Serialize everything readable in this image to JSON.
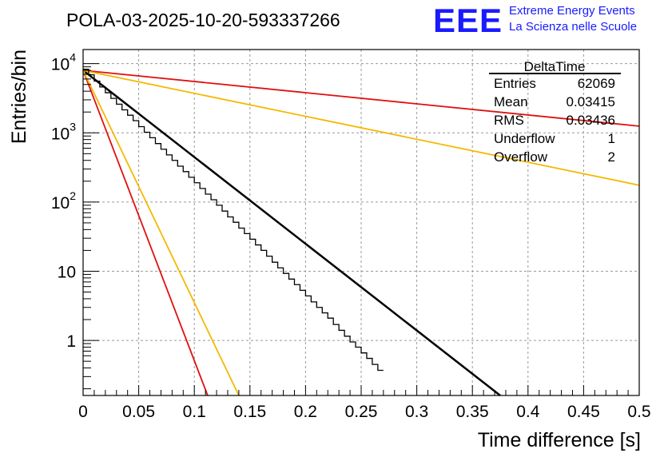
{
  "chart_data": {
    "type": "histogram",
    "title": "POLA-03-2025-10-20-593337266",
    "logo": {
      "text": "EEE",
      "line1": "Extreme Energy Events",
      "line2": "La Scienza nelle Scuole",
      "color": "#1a1aff"
    },
    "xlabel": "Time difference [s]",
    "ylabel": "Entries/bin",
    "xlim": [
      0,
      0.5
    ],
    "ylim": [
      0.16,
      16000
    ],
    "yscale": "log",
    "grid": true,
    "x_ticks": [
      {
        "value": 0,
        "label": "0"
      },
      {
        "value": 0.05,
        "label": "0.05"
      },
      {
        "value": 0.1,
        "label": "0.1"
      },
      {
        "value": 0.15,
        "label": "0.15"
      },
      {
        "value": 0.2,
        "label": "0.2"
      },
      {
        "value": 0.25,
        "label": "0.25"
      },
      {
        "value": 0.3,
        "label": "0.3"
      },
      {
        "value": 0.35,
        "label": "0.35"
      },
      {
        "value": 0.4,
        "label": "0.4"
      },
      {
        "value": 0.45,
        "label": "0.45"
      },
      {
        "value": 0.5,
        "label": "0.5"
      }
    ],
    "y_ticks": [
      {
        "value": 1,
        "base": "1",
        "exp": ""
      },
      {
        "value": 10,
        "base": "10",
        "exp": ""
      },
      {
        "value": 100,
        "base": "10",
        "exp": "2"
      },
      {
        "value": 1000,
        "base": "10",
        "exp": "3"
      },
      {
        "value": 10000,
        "base": "10",
        "exp": "4"
      }
    ],
    "stats_box": {
      "title": "DeltaTime",
      "rows": [
        {
          "label": "Entries",
          "value": "62069"
        },
        {
          "label": "Mean",
          "value": "0.03415"
        },
        {
          "label": "RMS",
          "value": "0.03436"
        },
        {
          "label": "Underflow",
          "value": "1"
        },
        {
          "label": "Overflow",
          "value": "2"
        }
      ]
    },
    "bin_width": 0.005,
    "histogram_counts": [
      8300,
      6900,
      5600,
      4600,
      3800,
      3150,
      2600,
      2150,
      1800,
      1500,
      1230,
      1020,
      850,
      700,
      580,
      480,
      400,
      330,
      275,
      228,
      190,
      157,
      130,
      108,
      90,
      74,
      61,
      51,
      42,
      35,
      29,
      24,
      20,
      16.5,
      13.5,
      11.2,
      9.3,
      7.7,
      6.4,
      5.3,
      4.4,
      3.6,
      3.0,
      2.5,
      2.1,
      1.7,
      1.4,
      1.15,
      0.95,
      0.8,
      0.66,
      0.55,
      0.45,
      0.37
    ],
    "series": [
      {
        "name": "fit",
        "color": "#000000",
        "width": 2.5,
        "x": [
          0,
          0.375
        ],
        "y": [
          8000,
          0.16
        ]
      },
      {
        "name": "red-steep",
        "color": "#e01010",
        "width": 1.8,
        "x": [
          0,
          0.112
        ],
        "y": [
          8000,
          0.16
        ]
      },
      {
        "name": "orange-steep",
        "color": "#f5b800",
        "width": 1.8,
        "x": [
          0,
          0.14
        ],
        "y": [
          8000,
          0.16
        ]
      },
      {
        "name": "red-shallow",
        "color": "#e01010",
        "width": 1.8,
        "x": [
          0,
          0.5
        ],
        "y": [
          8000,
          1250
        ]
      },
      {
        "name": "orange-shallow",
        "color": "#f5b800",
        "width": 1.8,
        "x": [
          0,
          0.5
        ],
        "y": [
          8000,
          175
        ]
      }
    ]
  }
}
